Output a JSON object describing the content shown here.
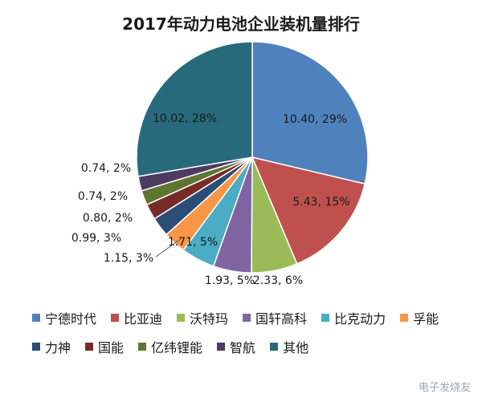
{
  "chart_data": {
    "type": "pie",
    "title": "2017年动力电池企业装机量排行",
    "slices": [
      {
        "name": "宁德时代",
        "value": 10.4,
        "label": "10.40, 29%",
        "color": "#4f81bd"
      },
      {
        "name": "比亚迪",
        "value": 5.43,
        "label": "5.43, 15%",
        "color": "#c0504d"
      },
      {
        "name": "沃特玛",
        "value": 2.33,
        "label": "2.33, 6%",
        "color": "#9bbb59"
      },
      {
        "name": "国轩高科",
        "value": 1.93,
        "label": "1.93, 5%",
        "color": "#8064a2"
      },
      {
        "name": "比克动力",
        "value": 1.71,
        "label": "1.71, 5%",
        "color": "#4bacc6"
      },
      {
        "name": "孚能",
        "value": 1.15,
        "label": "1.15, 3%",
        "color": "#f79646"
      },
      {
        "name": "力神",
        "value": 0.99,
        "label": "0.99, 3%",
        "color": "#2c4d75"
      },
      {
        "name": "国能",
        "value": 0.8,
        "label": "0.80, 2%",
        "color": "#772c2a"
      },
      {
        "name": "亿纬锂能",
        "value": 0.74,
        "label": "0.74, 2%",
        "color": "#5f7530"
      },
      {
        "name": "智航",
        "value": 0.74,
        "label": "0.74, 2%",
        "color": "#4d3b62"
      },
      {
        "name": "其他",
        "value": 10.02,
        "label": "10.02, 28%",
        "color": "#276a7c"
      }
    ],
    "legend_placement": "bottom",
    "legend_rows": [
      [
        "宁德时代",
        "比亚迪",
        "沃特玛",
        "国轩高科",
        "比克动力",
        "孚能"
      ],
      [
        "力神",
        "国能",
        "亿纬锂能",
        "智航",
        "其他"
      ]
    ]
  },
  "watermark": "电子发烧友"
}
